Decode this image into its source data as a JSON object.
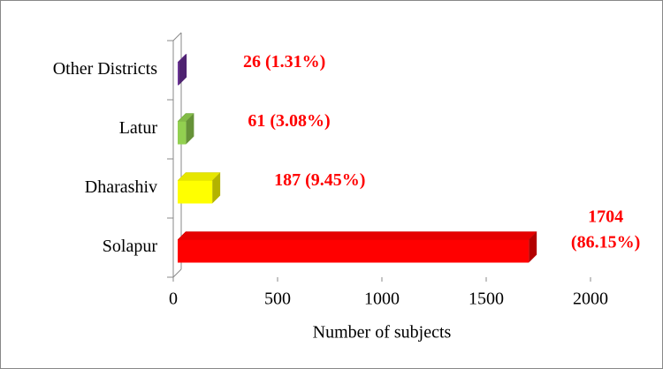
{
  "chart_data": {
    "type": "bar3d_horizontal",
    "categories": [
      "Other Districts",
      "Latur",
      "Dharashiv",
      "Solapur"
    ],
    "values": [
      26,
      61,
      187,
      1704
    ],
    "value_labels": [
      "26 (1.31%)",
      "61 (3.08%)",
      "187 (9.45%)",
      "1704 (86.15%)"
    ],
    "colors": [
      "#7030a0",
      "#92d050",
      "#ffff00",
      "#ff0000"
    ],
    "label_color": "#ff0000",
    "xlabel": "Number of subjects",
    "xlim": [
      0,
      2000
    ],
    "xticks": [
      0,
      500,
      1000,
      1500,
      2000
    ]
  }
}
